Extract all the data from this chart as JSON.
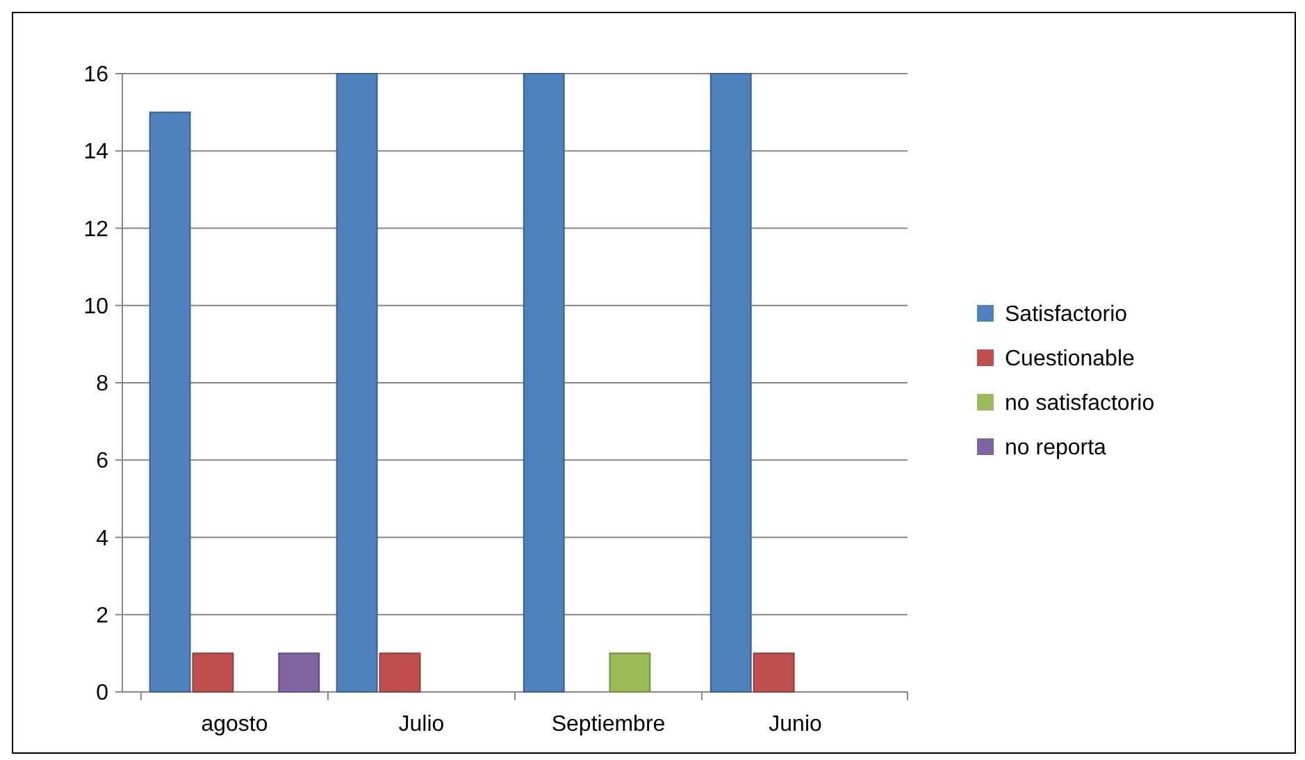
{
  "chart_data": {
    "type": "bar",
    "categories": [
      "agosto",
      "Julio",
      "Septiembre",
      "Junio"
    ],
    "series": [
      {
        "name": "Satisfactorio",
        "color": "#4f81bd",
        "values": [
          15,
          16,
          16,
          16
        ]
      },
      {
        "name": "Cuestionable",
        "color": "#c0504d",
        "values": [
          1,
          1,
          0,
          1
        ]
      },
      {
        "name": "no satisfactorio",
        "color": "#9bbb59",
        "values": [
          0,
          0,
          1,
          0
        ]
      },
      {
        "name": "no reporta",
        "color": "#8064a2",
        "values": [
          1,
          0,
          0,
          0
        ]
      }
    ],
    "ylim": [
      0,
      16
    ],
    "yticks": [
      0,
      2,
      4,
      6,
      8,
      10,
      12,
      14,
      16
    ],
    "grid": "y",
    "legend": "right"
  }
}
